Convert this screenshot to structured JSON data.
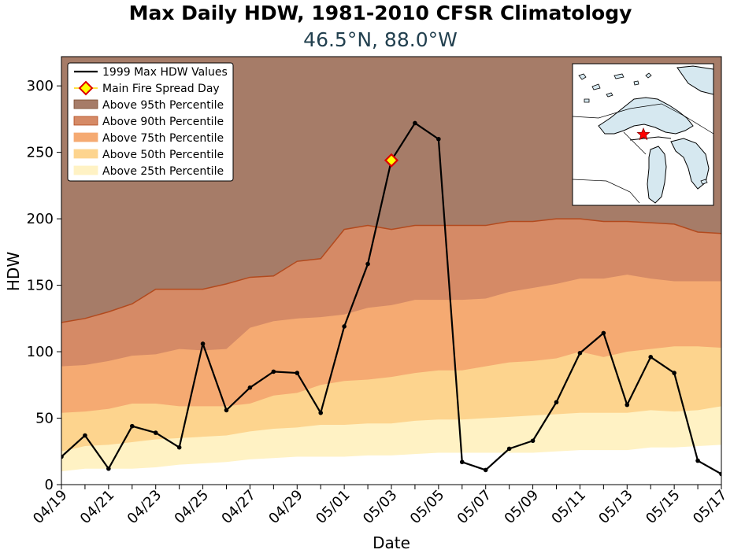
{
  "chart_data": {
    "type": "area",
    "title": "Max Daily HDW, 1981-2010 CFSR Climatology",
    "subtitle": "46.5°N, 88.0°W",
    "xlabel": "Date",
    "ylabel": "HDW",
    "ylim": [
      0,
      322
    ],
    "yticks": [
      0,
      50,
      100,
      150,
      200,
      250,
      300
    ],
    "x": [
      "04/19",
      "04/20",
      "04/21",
      "04/22",
      "04/23",
      "04/24",
      "04/25",
      "04/26",
      "04/27",
      "04/28",
      "04/29",
      "04/30",
      "05/01",
      "05/02",
      "05/03",
      "05/04",
      "05/05",
      "05/06",
      "05/07",
      "05/08",
      "05/09",
      "05/10",
      "05/11",
      "05/12",
      "05/13",
      "05/14",
      "05/15",
      "05/16",
      "05/17"
    ],
    "xticklabels": [
      "04/19",
      "04/21",
      "04/23",
      "04/25",
      "04/27",
      "04/29",
      "05/01",
      "05/03",
      "05/05",
      "05/07",
      "05/09",
      "05/11",
      "05/13",
      "05/15",
      "05/17"
    ],
    "grid": false,
    "legend_position": "top-left",
    "bands": [
      {
        "name": "Above 95th Percentile",
        "color": "#a67c68",
        "edge": "#7a4a2e",
        "top": "axis_max"
      },
      {
        "name": "Above 90th Percentile",
        "color": "#d58a66",
        "edge": "#b24a1e",
        "values": [
          122,
          125,
          130,
          136,
          147,
          147,
          147,
          151,
          156,
          157,
          168,
          170,
          192,
          195,
          192,
          195,
          195,
          195,
          195,
          198,
          198,
          200,
          200,
          198,
          198,
          197,
          196,
          190,
          189
        ]
      },
      {
        "name": "Above 75th Percentile",
        "color": "#f5aa72",
        "edge": "#f5aa72",
        "values": [
          89,
          90,
          93,
          97,
          98,
          102,
          101,
          102,
          118,
          123,
          125,
          126,
          128,
          133,
          135,
          139,
          139,
          139,
          140,
          145,
          148,
          151,
          155,
          155,
          158,
          155,
          153,
          153,
          153
        ]
      },
      {
        "name": "Above 50th Percentile",
        "color": "#fdd48e",
        "edge": "#fdd48e",
        "values": [
          54,
          55,
          57,
          61,
          61,
          59,
          59,
          59,
          61,
          67,
          69,
          75,
          78,
          79,
          81,
          84,
          86,
          86,
          89,
          92,
          93,
          95,
          100,
          96,
          100,
          102,
          104,
          104,
          103
        ]
      },
      {
        "name": "Above 25th Percentile",
        "color": "#fff2c4",
        "edge": "#fff2c4",
        "values": [
          25,
          29,
          30,
          32,
          34,
          35,
          36,
          37,
          40,
          42,
          43,
          45,
          45,
          46,
          46,
          48,
          49,
          49,
          50,
          51,
          52,
          53,
          54,
          54,
          54,
          56,
          55,
          56,
          59
        ]
      },
      {
        "name": "",
        "color": "#ffffff",
        "edge": "#ffffff",
        "values": [
          10,
          12,
          12,
          12,
          13,
          15,
          16,
          17,
          19,
          20,
          21,
          21,
          21,
          22,
          22,
          23,
          24,
          24,
          24,
          24,
          24,
          25,
          26,
          26,
          26,
          28,
          28,
          29,
          30
        ]
      }
    ],
    "series": [
      {
        "name": "1999 Max HDW Values",
        "color": "#000000",
        "values": [
          21,
          37,
          12,
          44,
          39,
          28,
          106,
          56,
          73,
          85,
          84,
          54,
          119,
          166,
          244,
          272,
          260,
          17,
          11,
          27,
          33,
          62,
          99,
          114,
          60,
          96,
          84,
          18,
          8
        ]
      }
    ],
    "marker": {
      "name": "Main Fire Spread Day",
      "x": "05/03",
      "y": 244,
      "fill": "#ffff00",
      "edge": "#dd0000"
    },
    "inset_map": {
      "description": "Great Lakes region",
      "land": "#ffffff",
      "water": "#d6e8f0",
      "star_color": "#ff0000"
    }
  }
}
